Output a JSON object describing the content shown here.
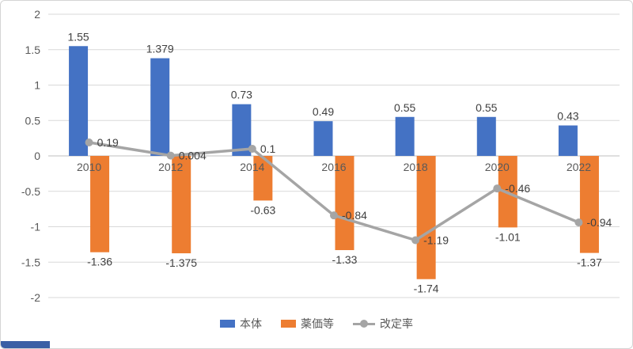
{
  "chart_data": {
    "type": "combo",
    "title": "",
    "categories": [
      "2010",
      "2012",
      "2014",
      "2016",
      "2018",
      "2020",
      "2022"
    ],
    "series": [
      {
        "name": "本体",
        "type": "bar",
        "color": "#4472C4",
        "values": [
          1.55,
          1.379,
          0.73,
          0.49,
          0.55,
          0.55,
          0.43
        ]
      },
      {
        "name": "薬価等",
        "type": "bar",
        "color": "#ED7D31",
        "values": [
          -1.36,
          -1.375,
          -0.63,
          -1.33,
          -1.74,
          -1.01,
          -1.37
        ]
      },
      {
        "name": "改定率",
        "type": "line",
        "color": "#A5A5A5",
        "values": [
          0.19,
          0.004,
          0.1,
          -0.84,
          -1.19,
          -0.46,
          -0.94
        ]
      }
    ],
    "ylim": [
      -2,
      2
    ],
    "ytick_step": 0.5,
    "yticks": [
      "2",
      "1.5",
      "1",
      "0.5",
      "0",
      "-0.5",
      "-1",
      "-1.5",
      "-2"
    ],
    "grid": true,
    "legend_position": "bottom",
    "colors": {
      "grid": "#D9D9D9",
      "axis": "#BFBFBF",
      "text": "#595959",
      "data_label": "#404040"
    }
  },
  "artifacts": {
    "corner_strip_color": "#3A5FA5"
  }
}
